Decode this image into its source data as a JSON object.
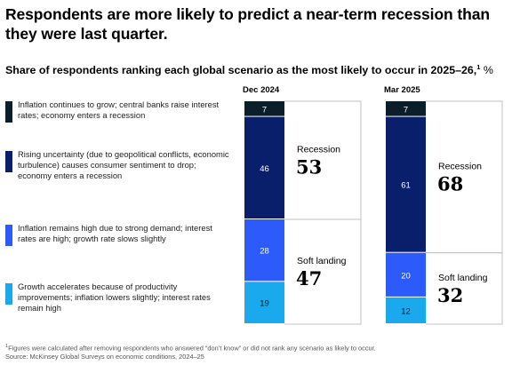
{
  "headline": "Respondents are more likely to predict a near-term recession than they were last quarter.",
  "subtitle": {
    "text": "Share of respondents ranking each global scenario as the most likely to occur in 2025–26,",
    "footnote_marker": "1",
    "unit": "%"
  },
  "footnote": {
    "note": "Figures were calculated after removing respondents who answered “don’t know” or did not rank any scenario as likely to occur.",
    "marker": "1",
    "source": "Source: McKinsey Global Surveys on economic conditions, 2024–25"
  },
  "chart_data": {
    "type": "stacked-bar",
    "categories": [
      "Dec 2024",
      "Mar 2025"
    ],
    "series": [
      {
        "name": "Inflation continues to grow; central banks raise interest rates; economy enters a recession",
        "color": "#0b1f2a",
        "values": [
          7,
          7
        ]
      },
      {
        "name": "Rising uncertainty (due to geopolitical conflicts, economic turbulence) causes consumer sentiment to drop; economy enters a recession",
        "color": "#0a1f6b",
        "values": [
          46,
          61
        ]
      },
      {
        "name": "Inflation remains high due to strong demand; interest rates are high; growth rate slows slightly",
        "color": "#2d5bfa",
        "values": [
          28,
          20
        ]
      },
      {
        "name": "Growth accelerates because of productivity improvements; inflation lowers slightly; interest rates remain high",
        "color": "#19a9ec",
        "values": [
          19,
          12
        ]
      }
    ],
    "groups": [
      {
        "label": "Recession",
        "series_indices": [
          0,
          1
        ],
        "totals": [
          53,
          68
        ]
      },
      {
        "label": "Soft landing",
        "series_indices": [
          2,
          3
        ],
        "totals": [
          47,
          32
        ]
      }
    ],
    "ylim": [
      0,
      100
    ],
    "segment_label_colors": [
      "#ffffff",
      "#ffffff",
      "#ffffff",
      "#0b1f2a"
    ],
    "bracket_color": "#c0c0c0"
  }
}
